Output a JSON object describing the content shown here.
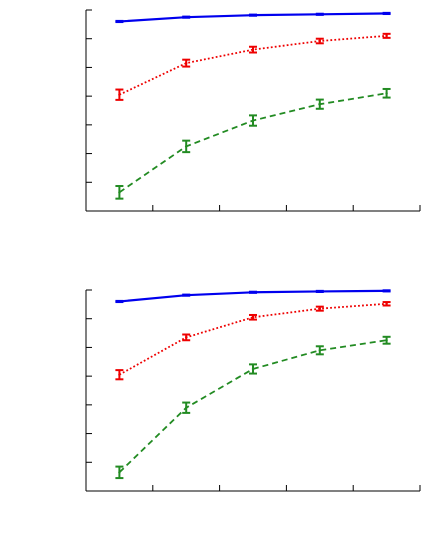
{
  "chart_data": [
    {
      "type": "line",
      "title": "",
      "xlabel": "",
      "ylabel": "",
      "grid": false,
      "legend": "none",
      "x": [
        1,
        2,
        3,
        4,
        5
      ],
      "xlim": [
        0.5,
        5.5
      ],
      "ylim": [
        0,
        7
      ],
      "series": [
        {
          "color": "#0000ee",
          "line_style": "solid",
          "values": [
            6.6,
            6.75,
            6.82,
            6.85,
            6.88
          ],
          "errors": [
            0.02,
            0.02,
            0.02,
            0.02,
            0.02
          ]
        },
        {
          "color": "#ee0000",
          "line_style": "dotted",
          "values": [
            4.05,
            5.15,
            5.62,
            5.92,
            6.1
          ],
          "errors": [
            0.18,
            0.12,
            0.1,
            0.08,
            0.07
          ]
        },
        {
          "color": "#228b22",
          "line_style": "dashed",
          "values": [
            0.65,
            2.25,
            3.15,
            3.72,
            4.1
          ],
          "errors": [
            0.22,
            0.2,
            0.18,
            0.16,
            0.15
          ]
        }
      ]
    },
    {
      "type": "line",
      "title": "",
      "xlabel": "",
      "ylabel": "",
      "grid": false,
      "legend": "none",
      "x": [
        1,
        2,
        3,
        4,
        5
      ],
      "xlim": [
        0.5,
        5.5
      ],
      "ylim": [
        0,
        7
      ],
      "series": [
        {
          "color": "#0000ee",
          "line_style": "solid",
          "values": [
            6.6,
            6.82,
            6.92,
            6.95,
            6.97
          ],
          "errors": [
            0.02,
            0.02,
            0.02,
            0.02,
            0.02
          ]
        },
        {
          "color": "#ee0000",
          "line_style": "dotted",
          "values": [
            4.05,
            5.35,
            6.05,
            6.35,
            6.52
          ],
          "errors": [
            0.16,
            0.1,
            0.08,
            0.07,
            0.06
          ]
        },
        {
          "color": "#228b22",
          "line_style": "dashed",
          "values": [
            0.65,
            2.9,
            4.25,
            4.9,
            5.25
          ],
          "errors": [
            0.2,
            0.18,
            0.16,
            0.14,
            0.12
          ]
        }
      ]
    }
  ]
}
